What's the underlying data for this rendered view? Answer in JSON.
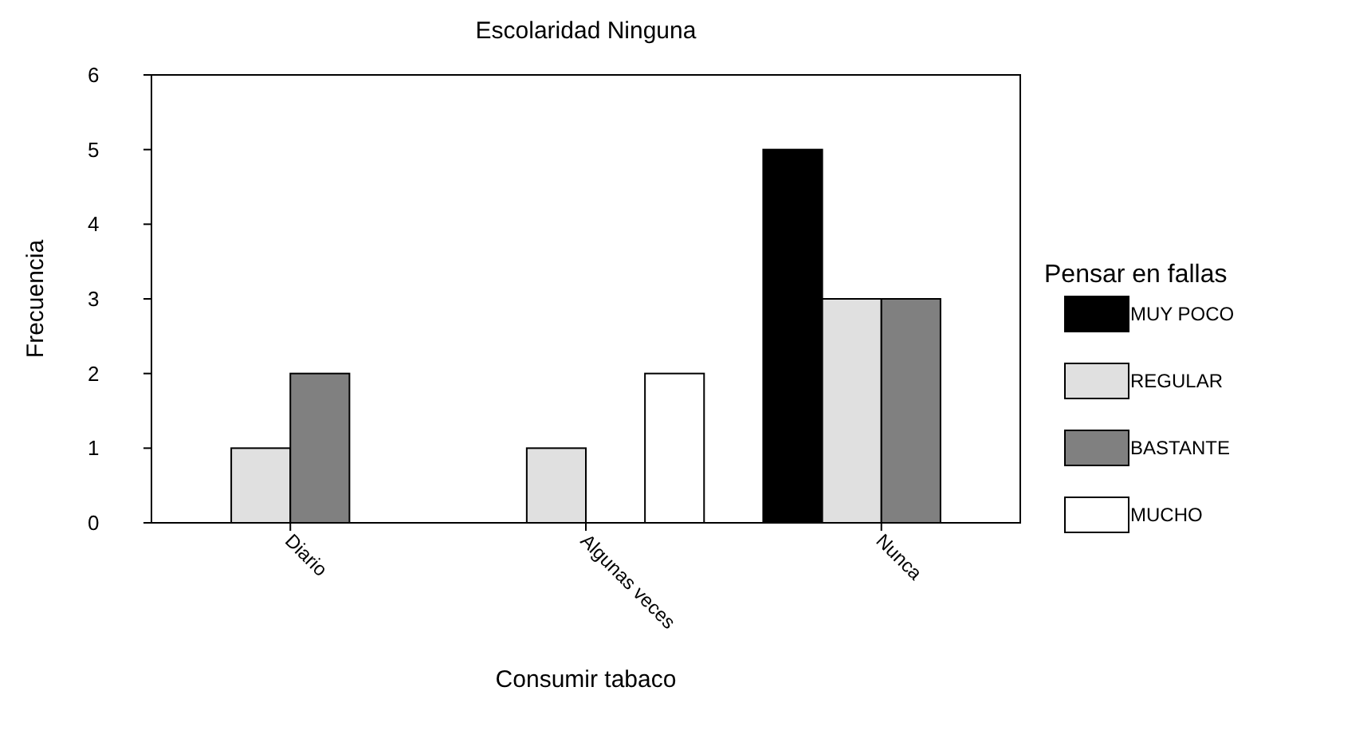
{
  "chart_data": {
    "type": "bar",
    "title": "Escolaridad Ninguna",
    "xlabel": "Consumir tabaco",
    "ylabel": "Frecuencia",
    "legend_title": "Pensar en fallas",
    "legend": "right",
    "grid": false,
    "categories": [
      "Diario",
      "Algunas veces",
      "Nunca"
    ],
    "ylim": [
      0,
      6
    ],
    "yticks": [
      0,
      1,
      2,
      3,
      4,
      5,
      6
    ],
    "series": [
      {
        "name": "MUY POCO",
        "color": "#000000",
        "values": [
          null,
          null,
          5
        ]
      },
      {
        "name": "REGULAR",
        "color": "#e0e0e0",
        "values": [
          1,
          1,
          3
        ]
      },
      {
        "name": "BASTANTE",
        "color": "#808080",
        "values": [
          2,
          null,
          3
        ]
      },
      {
        "name": "MUCHO",
        "color": "#ffffff",
        "values": [
          null,
          2,
          null
        ]
      }
    ]
  }
}
